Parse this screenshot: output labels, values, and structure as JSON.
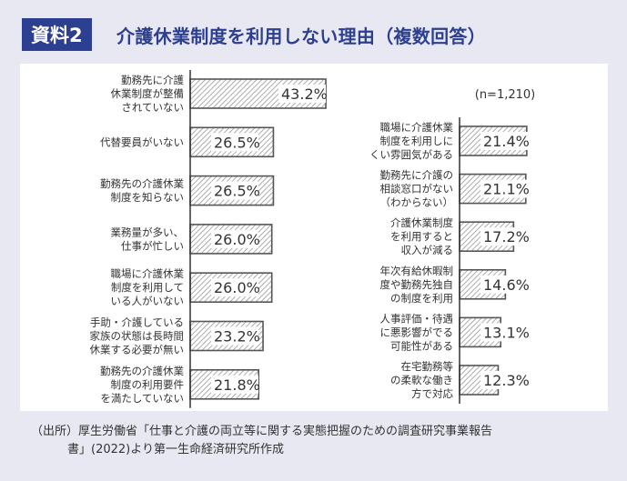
{
  "header": {
    "badge": "資料2",
    "title": "介護休業制度を利用しない理由（複数回答）"
  },
  "chart_data": {
    "type": "bar",
    "orientation": "horizontal",
    "note": "(n=1,210)",
    "value_suffix": "%",
    "xlim": [
      0,
      50
    ],
    "bar_color": "#555555",
    "columns": [
      {
        "categories": [
          [
            "勤務先に介護",
            "休業制度が整備",
            "されていない"
          ],
          [
            "代替要員がいない"
          ],
          [
            "勤務先の介護休業",
            "制度を知らない"
          ],
          [
            "業務量が多い、",
            "仕事が忙しい"
          ],
          [
            "職場に介護休業",
            "制度を利用して",
            "いる人がいない"
          ],
          [
            "手助・介護している",
            "家族の状態は長時間",
            "休業する必要が無い"
          ],
          [
            "勤務先の介護休業",
            "制度の利用要件",
            "を満たしていない"
          ]
        ],
        "values": [
          43.2,
          26.5,
          26.5,
          26.0,
          26.0,
          23.2,
          21.8
        ]
      },
      {
        "categories": [
          [
            "職場に介護休業",
            "制度を利用しに",
            "くい雰囲気がある"
          ],
          [
            "勤務先に介護の",
            "相談窓口がない",
            "（わからない）"
          ],
          [
            "介護休業制度",
            "を利用すると",
            "収入が減る"
          ],
          [
            "年次有給休暇制",
            "度や勤務先独自",
            "の制度を利用"
          ],
          [
            "人事評価・待遇",
            "に悪影響がでる",
            "可能性がある"
          ],
          [
            "在宅勤務等",
            "の柔軟な働き",
            "方で対応"
          ]
        ],
        "values": [
          21.4,
          21.1,
          17.2,
          14.6,
          13.1,
          12.3
        ]
      }
    ]
  },
  "source": {
    "line1": "（出所）厚生労働省「仕事と介護の両立等に関する実態把握のための調査研究事業報告",
    "line2": "書」(2022)より第一生命経済研究所作成"
  }
}
